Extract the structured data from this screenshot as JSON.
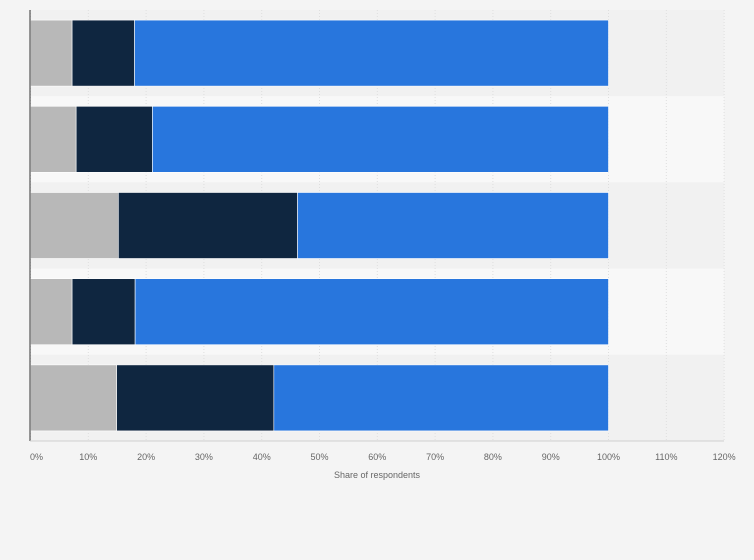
{
  "chart_data": {
    "type": "bar",
    "orientation": "horizontal",
    "stacked": true,
    "categories": [
      "",
      "",
      "",
      "",
      ""
    ],
    "series": [
      {
        "values": [
          7.2,
          7.9,
          15.2,
          7.2,
          14.9
        ],
        "color": "#b8b8b8"
      },
      {
        "values": [
          10.8,
          13.2,
          31.0,
          10.9,
          27.2
        ],
        "color": "#0f2640"
      },
      {
        "values": [
          82.0,
          78.9,
          53.8,
          81.9,
          57.9
        ],
        "color": "#2876dd"
      }
    ],
    "xlabel": "Share of respondents",
    "ylabel": "",
    "xlim": [
      0,
      120
    ],
    "xticks": [
      "0%",
      "10%",
      "20%",
      "30%",
      "40%",
      "50%",
      "60%",
      "70%",
      "80%",
      "90%",
      "100%",
      "110%",
      "120%"
    ],
    "grid": true,
    "legend": "none"
  }
}
